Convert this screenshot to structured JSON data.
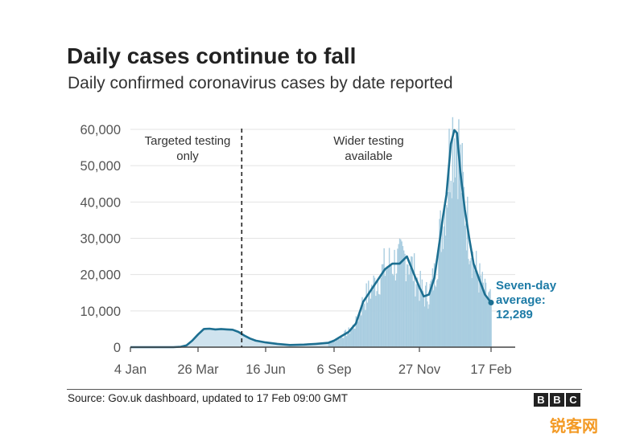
{
  "title": "Daily cases continue to fall",
  "subtitle": "Daily confirmed coronavirus cases by date reported",
  "source": "Source: Gov.uk dashboard, updated to 17 Feb 09:00 GMT",
  "brand": [
    "B",
    "B",
    "C"
  ],
  "watermark": "锐客网",
  "colors": {
    "bars": "#a9cde0",
    "line": "#1d6f91",
    "early_area": "#cfe3ee",
    "annotation": "#1d7ba6",
    "axis": "#444444",
    "grid": "#e3e3e3",
    "text": "#222222"
  },
  "chart_data": {
    "type": "area",
    "x_ticks": [
      "4 Jan",
      "26 Mar",
      "16 Jun",
      "6 Sep",
      "27 Nov",
      "17 Feb"
    ],
    "y_ticks": [
      "0",
      "10,000",
      "20,000",
      "30,000",
      "40,000",
      "50,000",
      "60,000"
    ],
    "ylim": [
      0,
      62000
    ],
    "grid": true,
    "divider_date": "2020-05-18",
    "region_labels": [
      {
        "lines": [
          "Targeted testing",
          "only"
        ],
        "side": "left"
      },
      {
        "lines": [
          "Wider testing",
          "available"
        ],
        "side": "right"
      }
    ],
    "end_annotation": [
      "Seven-day",
      "average:",
      "12,289"
    ],
    "seven_day_average": [
      [
        "2020-01-04",
        0
      ],
      [
        "2020-02-25",
        0
      ],
      [
        "2020-03-05",
        100
      ],
      [
        "2020-03-12",
        500
      ],
      [
        "2020-03-19",
        1800
      ],
      [
        "2020-03-26",
        3500
      ],
      [
        "2020-04-02",
        5000
      ],
      [
        "2020-04-09",
        5100
      ],
      [
        "2020-04-16",
        4900
      ],
      [
        "2020-04-23",
        5000
      ],
      [
        "2020-04-30",
        4900
      ],
      [
        "2020-05-07",
        4800
      ],
      [
        "2020-05-14",
        4200
      ],
      [
        "2020-05-21",
        3200
      ],
      [
        "2020-05-28",
        2400
      ],
      [
        "2020-06-04",
        1800
      ],
      [
        "2020-06-16",
        1300
      ],
      [
        "2020-06-30",
        900
      ],
      [
        "2020-07-15",
        600
      ],
      [
        "2020-08-01",
        700
      ],
      [
        "2020-08-15",
        900
      ],
      [
        "2020-08-30",
        1200
      ],
      [
        "2020-09-06",
        1800
      ],
      [
        "2020-09-13",
        3000
      ],
      [
        "2020-09-20",
        4200
      ],
      [
        "2020-09-27",
        6500
      ],
      [
        "2020-10-04",
        12500
      ],
      [
        "2020-10-11",
        15500
      ],
      [
        "2020-10-18",
        18500
      ],
      [
        "2020-10-25",
        21500
      ],
      [
        "2020-11-01",
        23000
      ],
      [
        "2020-11-08",
        23000
      ],
      [
        "2020-11-15",
        25000
      ],
      [
        "2020-11-22",
        20000
      ],
      [
        "2020-11-27",
        16500
      ],
      [
        "2020-12-02",
        14000
      ],
      [
        "2020-12-08",
        14500
      ],
      [
        "2020-12-14",
        19000
      ],
      [
        "2020-12-20",
        29000
      ],
      [
        "2020-12-24",
        36000
      ],
      [
        "2020-12-28",
        42000
      ],
      [
        "2021-01-02",
        56000
      ],
      [
        "2021-01-06",
        59800
      ],
      [
        "2021-01-09",
        59000
      ],
      [
        "2021-01-13",
        48000
      ],
      [
        "2021-01-18",
        38000
      ],
      [
        "2021-01-23",
        30000
      ],
      [
        "2021-01-28",
        23000
      ],
      [
        "2021-02-03",
        19000
      ],
      [
        "2021-02-10",
        14500
      ],
      [
        "2021-02-17",
        12289
      ]
    ]
  }
}
